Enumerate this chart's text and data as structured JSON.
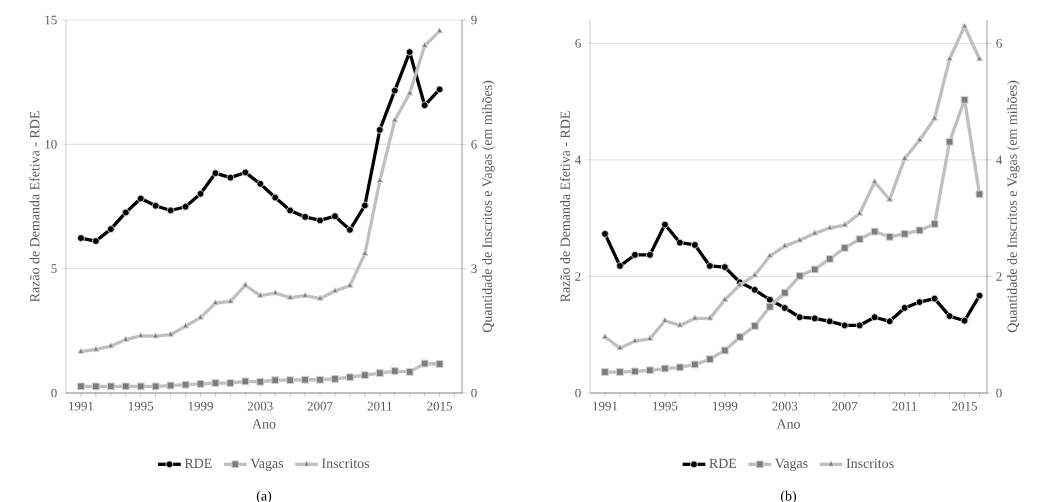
{
  "chart_data": [
    {
      "type": "line",
      "xlabel": "Ano",
      "ylabel": "Razão de Demanda Efetiva  - RDE",
      "y2label": "Quantidade de Inscritos e Vagas (em mihões)",
      "annotations": [
        "(a)"
      ],
      "x": [
        1991,
        1992,
        1993,
        1994,
        1995,
        1996,
        1997,
        1998,
        1999,
        2000,
        2001,
        2002,
        2003,
        2004,
        2005,
        2006,
        2007,
        2008,
        2009,
        2010,
        2011,
        2012,
        2013,
        2014,
        2015
      ],
      "xlim": [
        1990,
        2016.5
      ],
      "xticks": [
        1991,
        {
          "value": 1992,
          "label": null
        },
        {
          "value": 1993,
          "label": null
        },
        {
          "value": 1994,
          "label": null
        },
        1995,
        {
          "value": 1996,
          "label": null
        },
        {
          "value": 1997,
          "label": null
        },
        {
          "value": 1998,
          "label": null
        },
        1999,
        {
          "value": 2000,
          "label": null
        },
        {
          "value": 2001,
          "label": null
        },
        {
          "value": 2002,
          "label": null
        },
        2003,
        {
          "value": 2004,
          "label": null
        },
        {
          "value": 2005,
          "label": null
        },
        {
          "value": 2006,
          "label": null
        },
        2007,
        {
          "value": 2008,
          "label": null
        },
        {
          "value": 2009,
          "label": null
        },
        {
          "value": 2010,
          "label": null
        },
        2011,
        {
          "value": 2012,
          "label": null
        },
        {
          "value": 2013,
          "label": null
        },
        {
          "value": 2014,
          "label": null
        },
        2015,
        {
          "value": 2016,
          "label": null
        }
      ],
      "ylim": [
        0,
        15
      ],
      "yticks": [
        0,
        5,
        10,
        15
      ],
      "y2lim": [
        0,
        9
      ],
      "y2ticks": [
        0,
        3,
        6,
        9
      ],
      "grid": "y",
      "legend": "bottom",
      "line_style": "solid",
      "series": [
        {
          "name": "RDE",
          "color": "#000000",
          "marker": "circle",
          "values": [
            6.23,
            6.11,
            6.59,
            7.26,
            7.82,
            7.53,
            7.34,
            7.49,
            8.01,
            8.84,
            8.66,
            8.87,
            8.41,
            7.86,
            7.34,
            7.08,
            6.94,
            7.11,
            6.56,
            7.54,
            10.58,
            12.16,
            13.71,
            11.57,
            12.21
          ]
        },
        {
          "name": "Vagas",
          "color": "#bfbfbf",
          "marker": "square",
          "axis": "y2",
          "values": [
            0.16,
            0.16,
            0.16,
            0.16,
            0.16,
            0.16,
            0.18,
            0.2,
            0.22,
            0.24,
            0.24,
            0.28,
            0.27,
            0.31,
            0.31,
            0.32,
            0.32,
            0.34,
            0.38,
            0.43,
            0.48,
            0.53,
            0.51,
            0.71,
            0.7
          ]
        },
        {
          "name": "Inscritos",
          "color": "#bfbfbf",
          "marker": "triangle",
          "axis": "y2",
          "values": [
            1.0,
            1.05,
            1.13,
            1.29,
            1.38,
            1.37,
            1.41,
            1.61,
            1.82,
            2.17,
            2.21,
            2.6,
            2.35,
            2.41,
            2.3,
            2.35,
            2.28,
            2.46,
            2.59,
            3.36,
            5.12,
            6.58,
            7.23,
            8.38,
            8.73
          ]
        }
      ]
    },
    {
      "type": "line",
      "xlabel": "Ano",
      "ylabel": "Razão de Demanda Efetiva  - RDE",
      "y2label": "Quantidade de Inscritos e Vagas (em mihões)",
      "annotations": [
        "(b)"
      ],
      "x": [
        1991,
        1992,
        1993,
        1994,
        1995,
        1996,
        1997,
        1998,
        1999,
        2000,
        2001,
        2002,
        2003,
        2004,
        2005,
        2006,
        2007,
        2008,
        2009,
        2010,
        2011,
        2012,
        2013,
        2014,
        2015,
        2016
      ],
      "xlim": [
        1990,
        2016.5
      ],
      "xticks": [
        1991,
        {
          "value": 1992,
          "label": null
        },
        {
          "value": 1993,
          "label": null
        },
        {
          "value": 1994,
          "label": null
        },
        1995,
        {
          "value": 1996,
          "label": null
        },
        {
          "value": 1997,
          "label": null
        },
        {
          "value": 1998,
          "label": null
        },
        1999,
        {
          "value": 2000,
          "label": null
        },
        {
          "value": 2001,
          "label": null
        },
        {
          "value": 2002,
          "label": null
        },
        2003,
        {
          "value": 2004,
          "label": null
        },
        {
          "value": 2005,
          "label": null
        },
        {
          "value": 2006,
          "label": null
        },
        2007,
        {
          "value": 2008,
          "label": null
        },
        {
          "value": 2009,
          "label": null
        },
        {
          "value": 2010,
          "label": null
        },
        2011,
        {
          "value": 2012,
          "label": null
        },
        {
          "value": 2013,
          "label": null
        },
        {
          "value": 2014,
          "label": null
        },
        2015,
        {
          "value": 2016,
          "label": null
        }
      ],
      "ylim": [
        0,
        6.4
      ],
      "yticks": [
        0,
        2,
        4,
        6
      ],
      "y2lim": [
        0,
        6.4
      ],
      "y2ticks": [
        0,
        2,
        4,
        6
      ],
      "grid": "y",
      "legend": "bottom",
      "line_style": "solid",
      "series": [
        {
          "name": "RDE",
          "color": "#000000",
          "marker": "circle",
          "values": [
            2.73,
            2.18,
            2.37,
            2.37,
            2.89,
            2.58,
            2.54,
            2.18,
            2.16,
            1.9,
            1.77,
            1.6,
            1.46,
            1.3,
            1.28,
            1.23,
            1.16,
            1.16,
            1.3,
            1.23,
            1.46,
            1.56,
            1.62,
            1.32,
            1.24,
            1.67
          ]
        },
        {
          "name": "Vagas",
          "color": "#bfbfbf",
          "marker": "square",
          "axis": "y2",
          "values": [
            0.36,
            0.36,
            0.37,
            0.39,
            0.42,
            0.44,
            0.49,
            0.58,
            0.73,
            0.96,
            1.15,
            1.48,
            1.72,
            2.01,
            2.12,
            2.3,
            2.49,
            2.64,
            2.77,
            2.68,
            2.73,
            2.79,
            2.9,
            4.31,
            5.03,
            3.41
          ]
        },
        {
          "name": "Inscritos",
          "color": "#bfbfbf",
          "marker": "triangle",
          "axis": "y2",
          "values": [
            0.96,
            0.77,
            0.89,
            0.93,
            1.24,
            1.16,
            1.28,
            1.28,
            1.6,
            1.85,
            2.02,
            2.35,
            2.52,
            2.62,
            2.74,
            2.83,
            2.88,
            3.08,
            3.62,
            3.32,
            4.02,
            4.34,
            4.71,
            5.73,
            6.29,
            5.73
          ]
        }
      ]
    }
  ]
}
